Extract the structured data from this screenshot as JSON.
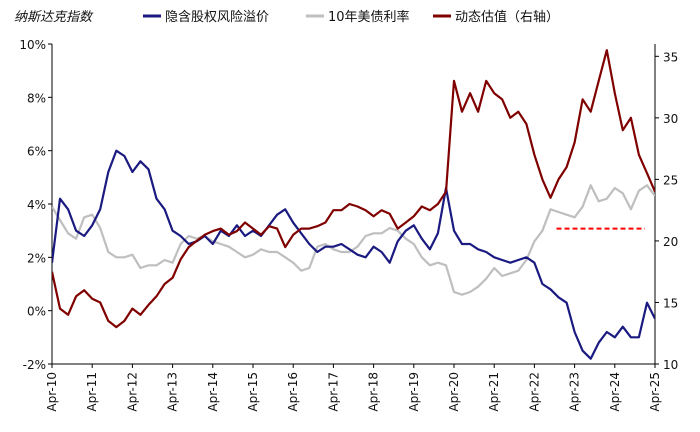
{
  "chart_data": {
    "type": "line",
    "title": "纳斯达克指数",
    "xlabel": "",
    "ylabel_left": "",
    "ylabel_right": "",
    "x_tick_labels": [
      "Apr-10",
      "Apr-11",
      "Apr-12",
      "Apr-13",
      "Apr-14",
      "Apr-15",
      "Apr-16",
      "Apr-17",
      "Apr-18",
      "Apr-19",
      "Apr-20",
      "Apr-21",
      "Apr-22",
      "Apr-23",
      "Apr-24",
      "Apr-25"
    ],
    "y_left_ticks": [
      "10%",
      "8%",
      "6%",
      "4%",
      "2%",
      "0%",
      "-2%"
    ],
    "y_left_tick_values": [
      10,
      8,
      6,
      4,
      2,
      0,
      -2
    ],
    "y_left_lim": [
      -2,
      10
    ],
    "y_right_ticks": [
      "35",
      "30",
      "25",
      "20",
      "15",
      "10"
    ],
    "y_right_tick_values": [
      35,
      30,
      25,
      20,
      15,
      10
    ],
    "y_right_lim": [
      10,
      36
    ],
    "grid": false,
    "legend_position": "top",
    "colors": {
      "risk_premium": "#1a1a80",
      "treasury_yield": "#bfbfbf",
      "valuation": "#800000",
      "reference_line": "#ff0000",
      "negative_tick": "#ff0000"
    },
    "series": [
      {
        "name": "隐含股权风险溢价",
        "axis": "left",
        "x": [
          2010.3,
          2010.5,
          2010.7,
          2010.9,
          2011.1,
          2011.3,
          2011.5,
          2011.7,
          2011.9,
          2012.1,
          2012.3,
          2012.5,
          2012.7,
          2012.9,
          2013.1,
          2013.3,
          2013.5,
          2013.7,
          2013.9,
          2014.1,
          2014.3,
          2014.5,
          2014.7,
          2014.9,
          2015.1,
          2015.3,
          2015.5,
          2015.7,
          2015.9,
          2016.1,
          2016.3,
          2016.5,
          2016.7,
          2016.9,
          2017.1,
          2017.3,
          2017.5,
          2017.7,
          2017.9,
          2018.1,
          2018.3,
          2018.5,
          2018.7,
          2018.9,
          2019.1,
          2019.3,
          2019.5,
          2019.7,
          2019.9,
          2020.1,
          2020.3,
          2020.5,
          2020.7,
          2020.9,
          2021.1,
          2021.3,
          2021.5,
          2021.7,
          2021.9,
          2022.1,
          2022.3,
          2022.5,
          2022.7,
          2022.9,
          2023.1,
          2023.3,
          2023.5,
          2023.7,
          2023.9,
          2024.1,
          2024.3,
          2024.5,
          2024.7,
          2024.9,
          2025.1,
          2025.3
        ],
        "values": [
          1.8,
          4.2,
          3.8,
          3.0,
          2.8,
          3.2,
          3.8,
          5.2,
          6.0,
          5.8,
          5.2,
          5.6,
          5.3,
          4.2,
          3.8,
          3.0,
          2.8,
          2.5,
          2.6,
          2.8,
          2.5,
          3.0,
          2.8,
          3.2,
          2.8,
          3.0,
          2.8,
          3.2,
          3.6,
          3.8,
          3.3,
          2.9,
          2.5,
          2.2,
          2.4,
          2.4,
          2.5,
          2.3,
          2.1,
          2.0,
          2.4,
          2.2,
          1.8,
          2.6,
          3.0,
          3.2,
          2.7,
          2.3,
          2.9,
          4.6,
          3.0,
          2.5,
          2.5,
          2.3,
          2.2,
          2.0,
          1.9,
          1.8,
          1.9,
          2.0,
          1.8,
          1.0,
          0.8,
          0.5,
          0.3,
          -0.8,
          -1.5,
          -1.8,
          -1.2,
          -0.8,
          -1.0,
          -0.6,
          -1.0,
          -1.0,
          0.3,
          -0.3
        ]
      },
      {
        "name": "10年美债利率",
        "axis": "left",
        "x": [
          2010.3,
          2010.5,
          2010.7,
          2010.9,
          2011.1,
          2011.3,
          2011.5,
          2011.7,
          2011.9,
          2012.1,
          2012.3,
          2012.5,
          2012.7,
          2012.9,
          2013.1,
          2013.3,
          2013.5,
          2013.7,
          2013.9,
          2014.1,
          2014.3,
          2014.5,
          2014.7,
          2014.9,
          2015.1,
          2015.3,
          2015.5,
          2015.7,
          2015.9,
          2016.1,
          2016.3,
          2016.5,
          2016.7,
          2016.9,
          2017.1,
          2017.3,
          2017.5,
          2017.7,
          2017.9,
          2018.1,
          2018.3,
          2018.5,
          2018.7,
          2018.9,
          2019.1,
          2019.3,
          2019.5,
          2019.7,
          2019.9,
          2020.1,
          2020.3,
          2020.5,
          2020.7,
          2020.9,
          2021.1,
          2021.3,
          2021.5,
          2021.7,
          2021.9,
          2022.1,
          2022.3,
          2022.5,
          2022.7,
          2022.9,
          2023.1,
          2023.3,
          2023.5,
          2023.7,
          2023.9,
          2024.1,
          2024.3,
          2024.5,
          2024.7,
          2024.9,
          2025.1,
          2025.3
        ],
        "values": [
          3.9,
          3.4,
          2.9,
          2.7,
          3.5,
          3.6,
          3.1,
          2.2,
          2.0,
          2.0,
          2.1,
          1.6,
          1.7,
          1.7,
          1.9,
          1.8,
          2.5,
          2.8,
          2.7,
          2.8,
          2.6,
          2.5,
          2.4,
          2.2,
          2.0,
          2.1,
          2.3,
          2.2,
          2.2,
          2.0,
          1.8,
          1.5,
          1.6,
          2.4,
          2.5,
          2.3,
          2.2,
          2.2,
          2.4,
          2.8,
          2.9,
          2.9,
          3.1,
          3.0,
          2.7,
          2.5,
          2.0,
          1.7,
          1.8,
          1.7,
          0.7,
          0.6,
          0.7,
          0.9,
          1.2,
          1.6,
          1.3,
          1.4,
          1.5,
          1.9,
          2.6,
          3.0,
          3.8,
          3.7,
          3.6,
          3.5,
          3.9,
          4.7,
          4.1,
          4.2,
          4.6,
          4.4,
          3.8,
          4.5,
          4.7,
          4.3
        ]
      },
      {
        "name": "动态估值（右轴）",
        "axis": "right",
        "x": [
          2010.3,
          2010.5,
          2010.7,
          2010.9,
          2011.1,
          2011.3,
          2011.5,
          2011.7,
          2011.9,
          2012.1,
          2012.3,
          2012.5,
          2012.7,
          2012.9,
          2013.1,
          2013.3,
          2013.5,
          2013.7,
          2013.9,
          2014.1,
          2014.3,
          2014.5,
          2014.7,
          2014.9,
          2015.1,
          2015.3,
          2015.5,
          2015.7,
          2015.9,
          2016.1,
          2016.3,
          2016.5,
          2016.7,
          2016.9,
          2017.1,
          2017.3,
          2017.5,
          2017.7,
          2017.9,
          2018.1,
          2018.3,
          2018.5,
          2018.7,
          2018.9,
          2019.1,
          2019.3,
          2019.5,
          2019.7,
          2019.9,
          2020.1,
          2020.3,
          2020.5,
          2020.7,
          2020.9,
          2021.1,
          2021.3,
          2021.5,
          2021.7,
          2021.9,
          2022.1,
          2022.3,
          2022.5,
          2022.7,
          2022.9,
          2023.1,
          2023.3,
          2023.5,
          2023.7,
          2023.9,
          2024.1,
          2024.3,
          2024.5,
          2024.7,
          2024.9,
          2025.1,
          2025.3
        ],
        "values": [
          17.5,
          14.5,
          14.0,
          15.5,
          16.0,
          15.3,
          15.0,
          13.5,
          13.0,
          13.5,
          14.5,
          14.0,
          14.8,
          15.5,
          16.5,
          17.0,
          18.5,
          19.5,
          20.0,
          20.5,
          20.8,
          21.0,
          20.5,
          20.8,
          21.5,
          21.0,
          20.5,
          21.2,
          21.0,
          19.5,
          20.5,
          21.0,
          21.0,
          21.2,
          21.5,
          22.5,
          22.5,
          23.0,
          22.8,
          22.5,
          22.0,
          22.5,
          22.2,
          21.0,
          21.5,
          22.0,
          22.8,
          22.5,
          23.0,
          24.0,
          33.0,
          30.5,
          32.0,
          30.5,
          33.0,
          32.0,
          31.5,
          30.0,
          30.5,
          29.5,
          27.0,
          25.0,
          23.5,
          25.0,
          26.0,
          28.0,
          31.5,
          30.5,
          33.0,
          35.5,
          32.0,
          29.0,
          30.0,
          27.0,
          25.5,
          24.0
        ]
      }
    ],
    "reference_line": {
      "axis": "right",
      "y": 21,
      "x_range": [
        2022.85,
        2025.05
      ],
      "style": "dashed"
    }
  }
}
